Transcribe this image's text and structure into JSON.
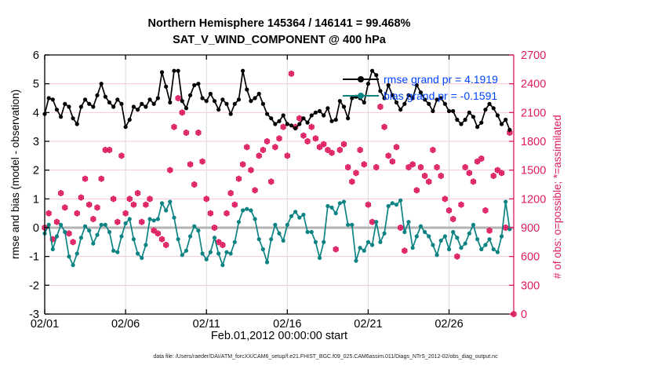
{
  "title": {
    "line1": "Northern Hemisphere 145364 / 146141 = 99.468%",
    "line2": "SAT_V_WIND_COMPONENT @ 400 hPa"
  },
  "legend": [
    {
      "label": "rmse grand pr = 4.1919",
      "color": "#000000"
    },
    {
      "label": "bias grand pr = -0.1591",
      "color": "#0d8383"
    }
  ],
  "footer": "data file: /Users/raeder/DAI/ATM_forcXX/CAM6_setup/f.e21.FHIST_BGC.f09_025.CAM6assim.011/Diags_NTrS_2012-02/obs_diag_output.nc",
  "colors": {
    "rmse_line": "#000000",
    "bias_line": "#0d8383",
    "obs_marker": "#de1b60",
    "legend_text": "#0044ff",
    "grid_horizontal": "#f3c9d7",
    "grid_vertical": "#dcdcdc",
    "zero_line": "#b3b3b3",
    "right_axis": "#de1b60"
  },
  "chart_data": {
    "type": "line",
    "title": "Northern Hemisphere 145364 / 146141 = 99.468% — SAT_V_WIND_COMPONENT @ 400 hPa",
    "xlabel": "Feb.01,2012 00:00:00 start",
    "ylabel_left": "rmse and bias (model - observation)",
    "ylabel_right": "# of obs: o=possible; *=assimilated",
    "x_range_days": [
      0,
      29
    ],
    "x_step_days": 0.25,
    "x_ticks": [
      {
        "day": 0,
        "label": "02/01"
      },
      {
        "day": 5,
        "label": "02/06"
      },
      {
        "day": 10,
        "label": "02/11"
      },
      {
        "day": 15,
        "label": "02/16"
      },
      {
        "day": 20,
        "label": "02/21"
      },
      {
        "day": 25,
        "label": "02/26"
      }
    ],
    "ylim_left": [
      -3,
      6
    ],
    "yticks_left": [
      -3,
      -2,
      -1,
      0,
      1,
      2,
      3,
      4,
      5,
      6
    ],
    "ylim_right": [
      0,
      2700
    ],
    "yticks_right": [
      0,
      300,
      600,
      900,
      1200,
      1500,
      1800,
      2100,
      2400,
      2700
    ],
    "grid": true,
    "legend_position": "top-right-inside",
    "series": [
      {
        "name": "rmse",
        "axis": "left",
        "color": "#000000",
        "marker": "filled-circle",
        "grand_mean": 4.1919,
        "values": [
          3.95,
          4.5,
          4.45,
          4.1,
          3.85,
          4.3,
          4.2,
          3.8,
          3.6,
          4.2,
          4.45,
          4.3,
          4.2,
          4.6,
          5.0,
          4.55,
          4.35,
          4.2,
          4.45,
          4.3,
          3.5,
          3.75,
          4.2,
          4.1,
          4.3,
          4.2,
          4.45,
          4.3,
          4.5,
          5.4,
          4.9,
          4.35,
          5.45,
          5.45,
          4.4,
          4.15,
          4.6,
          4.95,
          5.0,
          4.5,
          4.4,
          4.65,
          4.4,
          4.1,
          4.45,
          4.3,
          3.95,
          4.3,
          4.45,
          5.45,
          4.8,
          4.4,
          4.5,
          4.65,
          4.3,
          3.95,
          3.8,
          3.6,
          3.7,
          3.9,
          3.6,
          3.55,
          3.45,
          3.6,
          3.8,
          3.65,
          3.9,
          4.0,
          4.05,
          3.9,
          4.15,
          3.7,
          3.75,
          4.4,
          4.2,
          3.8,
          4.5,
          4.55,
          4.5,
          4.35,
          5.0,
          5.45,
          5.3,
          4.75,
          4.5,
          4.95,
          4.6,
          4.35,
          4.1,
          4.3,
          4.6,
          4.5,
          4.95,
          4.7,
          4.45,
          4.3,
          4.05,
          4.45,
          4.5,
          4.3,
          4.05,
          4.05,
          3.75,
          3.6,
          3.75,
          4.0,
          3.85,
          3.5,
          3.65,
          4.1,
          4.3,
          4.15,
          3.9,
          3.6,
          3.75,
          3.4
        ]
      },
      {
        "name": "bias",
        "axis": "left",
        "color": "#0d8383",
        "marker": "filled-circle",
        "grand_mean": -0.1591,
        "values": [
          -0.2,
          0.1,
          -0.75,
          -0.3,
          0.1,
          -0.15,
          -1.0,
          -1.3,
          -0.9,
          -0.35,
          0.05,
          -0.1,
          -0.55,
          -0.25,
          0.1,
          0.1,
          -0.15,
          -0.8,
          -0.85,
          -0.3,
          0.15,
          0.3,
          -0.4,
          -0.9,
          -1.05,
          -0.6,
          0.3,
          0.25,
          0.3,
          0.85,
          0.6,
          0.9,
          0.35,
          -0.4,
          -0.95,
          -0.8,
          -0.3,
          0.05,
          -0.1,
          -0.9,
          -1.1,
          -0.85,
          -0.35,
          -0.9,
          -1.3,
          -0.85,
          -0.9,
          -0.5,
          0.2,
          0.6,
          0.65,
          0.6,
          0.3,
          -0.4,
          -0.75,
          -1.2,
          -0.4,
          0.1,
          -0.2,
          -0.45,
          0.1,
          0.4,
          0.55,
          0.35,
          0.45,
          -0.15,
          -0.15,
          -0.5,
          -1.05,
          -0.5,
          0.75,
          0.7,
          0.5,
          0.85,
          0.9,
          0.1,
          0.1,
          -1.15,
          -0.7,
          -0.8,
          -0.5,
          -0.6,
          0.2,
          -0.5,
          -0.2,
          0.75,
          0.85,
          0.8,
          0.95,
          -0.15,
          0.2,
          -0.7,
          -0.3,
          0.05,
          -0.15,
          -0.3,
          -0.6,
          -0.95,
          -0.45,
          -0.3,
          -0.75,
          -0.15,
          -0.35,
          -0.7,
          -0.55,
          -0.2,
          0.1,
          -0.4,
          -0.75,
          -0.6,
          -0.4,
          -0.75,
          -0.85,
          -0.3,
          0.9,
          -0.05
        ]
      },
      {
        "name": "obs possible / assimilated",
        "axis": "right",
        "color": "#de1b60",
        "marker": "circle+asterisk",
        "values": [
          900,
          1050,
          780,
          960,
          1260,
          1110,
          840,
          750,
          1050,
          1215,
          1410,
          1140,
          990,
          1110,
          1410,
          1710,
          1710,
          1200,
          960,
          1650,
          1050,
          1200,
          1140,
          1260,
          960,
          1140,
          1200,
          870,
          840,
          780,
          720,
          1500,
          1950,
          2250,
          2100,
          1890,
          1560,
          1350,
          1890,
          1590,
          1200,
          1050,
          900,
          750,
          720,
          1050,
          1260,
          1140,
          1410,
          1560,
          1740,
          1500,
          1290,
          1650,
          1710,
          1800,
          1380,
          1740,
          1830,
          1950,
          1650,
          2505,
          1950,
          2040,
          1860,
          1800,
          1950,
          1830,
          1740,
          1770,
          1710,
          1680,
          675,
          1710,
          1770,
          1530,
          1380,
          1470,
          1710,
          1560,
          1140,
          960,
          1530,
          2160,
          1950,
          1650,
          1590,
          1740,
          900,
          660,
          1530,
          1560,
          1290,
          1530,
          1440,
          1380,
          1710,
          1530,
          1440,
          1200,
          1080,
          990,
          600,
          1140,
          1530,
          1470,
          1380,
          1590,
          1620,
          1080,
          870,
          1440,
          1500,
          1470,
          900,
          1890,
          0
        ]
      }
    ]
  }
}
